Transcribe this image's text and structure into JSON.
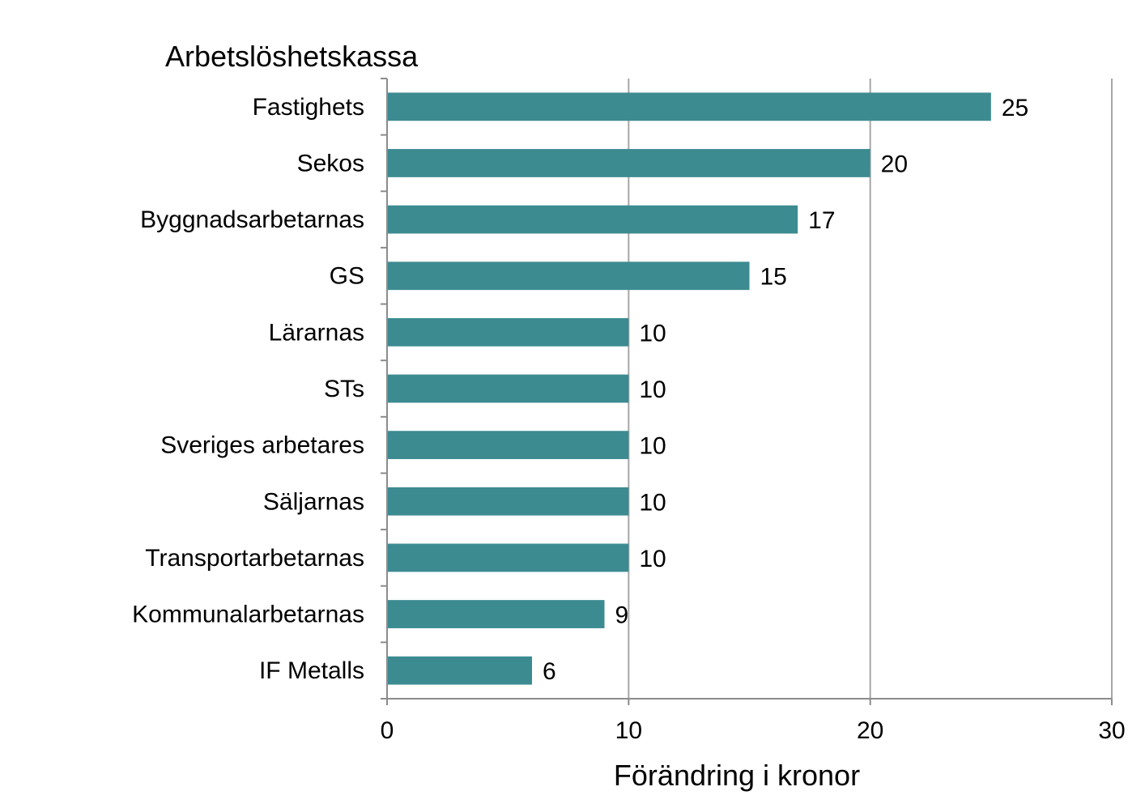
{
  "chart_data": {
    "type": "bar",
    "orientation": "horizontal",
    "category_axis_title": "Arbetslöshetskassa",
    "xlabel": "Förändring i kronor",
    "ylabel": "",
    "categories": [
      "Fastighets",
      "Sekos",
      "Byggnadsarbetarnas",
      "GS",
      "Lärarnas",
      "STs",
      "Sveriges arbetares",
      "Säljarnas",
      "Transportarbetarnas",
      "Kommunalarbetarnas",
      "IF Metalls"
    ],
    "values": [
      25,
      20,
      17,
      15,
      10,
      10,
      10,
      10,
      10,
      9,
      6
    ],
    "xlim": [
      0,
      30
    ],
    "xticks": [
      0,
      10,
      20,
      30
    ],
    "grid": "vertical",
    "legend": "none",
    "data_labels": true,
    "colors": {
      "bar": "#3c8b91",
      "gridline": "#a6a6a6",
      "axis": "#8c8c8c",
      "text": "#000000"
    }
  }
}
